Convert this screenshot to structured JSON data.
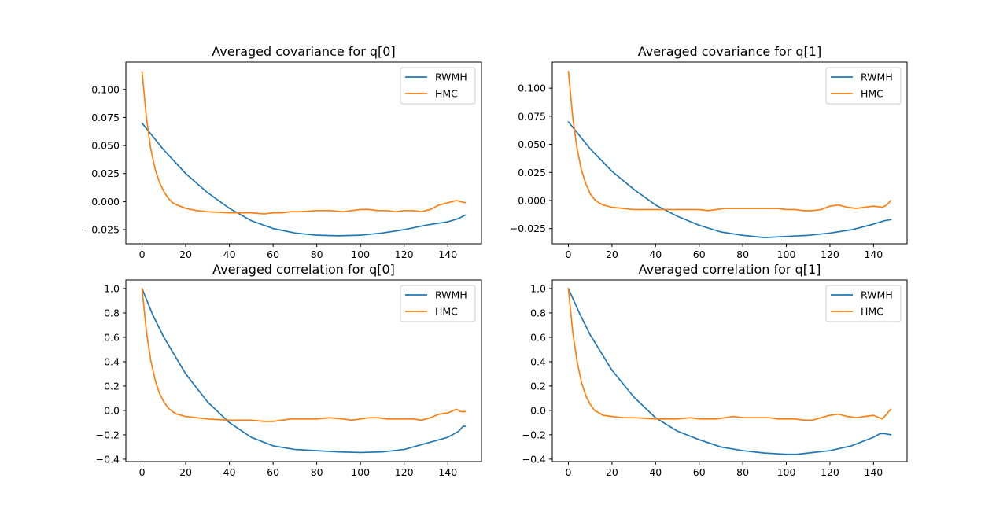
{
  "figure": {
    "background": "#ffffff"
  },
  "chart_data": [
    {
      "type": "line",
      "title": "Averaged covariance for q[0]",
      "xlabel": "",
      "ylabel": "",
      "xlim": [
        -7.4,
        155.4
      ],
      "ylim": [
        -0.0376,
        0.1244
      ],
      "xticks": [
        0,
        20,
        40,
        60,
        80,
        100,
        120,
        140
      ],
      "xtick_labels": [
        "0",
        "20",
        "40",
        "60",
        "80",
        "100",
        "120",
        "140"
      ],
      "yticks": [
        -0.025,
        0.0,
        0.025,
        0.05,
        0.075,
        0.1
      ],
      "ytick_labels": [
        "−0.025",
        "0.000",
        "0.025",
        "0.050",
        "0.075",
        "0.100"
      ],
      "grid": false,
      "legend": {
        "position": "top-right",
        "entries": [
          "RWMH",
          "HMC"
        ]
      },
      "series": [
        {
          "name": "RWMH",
          "color": "#1f77b4",
          "x": [
            0,
            10,
            20,
            30,
            40,
            50,
            60,
            70,
            80,
            90,
            100,
            110,
            120,
            130,
            140,
            145,
            148
          ],
          "y": [
            0.07,
            0.046,
            0.025,
            0.008,
            -0.006,
            -0.017,
            -0.024,
            -0.028,
            -0.03,
            -0.0305,
            -0.03,
            -0.028,
            -0.025,
            -0.021,
            -0.018,
            -0.015,
            -0.012
          ]
        },
        {
          "name": "HMC",
          "color": "#ff7f0e",
          "x": [
            0,
            2,
            4,
            6,
            8,
            10,
            12,
            14,
            16,
            20,
            25,
            30,
            40,
            50,
            56,
            60,
            64,
            68,
            72,
            80,
            86,
            92,
            96,
            100,
            104,
            108,
            112,
            116,
            120,
            124,
            128,
            132,
            136,
            140,
            144,
            146,
            148
          ],
          "y": [
            0.116,
            0.075,
            0.047,
            0.029,
            0.017,
            0.009,
            0.003,
            -0.001,
            -0.003,
            -0.006,
            -0.008,
            -0.009,
            -0.01,
            -0.01,
            -0.011,
            -0.01,
            -0.01,
            -0.009,
            -0.009,
            -0.008,
            -0.008,
            -0.009,
            -0.008,
            -0.007,
            -0.007,
            -0.008,
            -0.008,
            -0.009,
            -0.008,
            -0.008,
            -0.009,
            -0.007,
            -0.003,
            -0.001,
            0.001,
            0.0,
            -0.001
          ]
        }
      ]
    },
    {
      "type": "line",
      "title": "Averaged covariance for q[1]",
      "xlabel": "",
      "ylabel": "",
      "xlim": [
        -7.4,
        155.4
      ],
      "ylim": [
        -0.0385,
        0.1232
      ],
      "xticks": [
        0,
        20,
        40,
        60,
        80,
        100,
        120,
        140
      ],
      "xtick_labels": [
        "0",
        "20",
        "40",
        "60",
        "80",
        "100",
        "120",
        "140"
      ],
      "yticks": [
        -0.025,
        0.0,
        0.025,
        0.05,
        0.075,
        0.1
      ],
      "ytick_labels": [
        "−0.025",
        "0.000",
        "0.025",
        "0.050",
        "0.075",
        "0.100"
      ],
      "grid": false,
      "legend": {
        "position": "top-right",
        "entries": [
          "RWMH",
          "HMC"
        ]
      },
      "series": [
        {
          "name": "RWMH",
          "color": "#1f77b4",
          "x": [
            0,
            10,
            20,
            30,
            40,
            50,
            60,
            70,
            80,
            90,
            100,
            110,
            120,
            130,
            140,
            145,
            148
          ],
          "y": [
            0.07,
            0.046,
            0.026,
            0.01,
            -0.004,
            -0.014,
            -0.022,
            -0.028,
            -0.031,
            -0.033,
            -0.032,
            -0.031,
            -0.029,
            -0.026,
            -0.021,
            -0.018,
            -0.017
          ]
        },
        {
          "name": "HMC",
          "color": "#ff7f0e",
          "x": [
            0,
            2,
            4,
            6,
            8,
            10,
            12,
            14,
            16,
            20,
            25,
            30,
            40,
            50,
            56,
            60,
            64,
            68,
            72,
            76,
            80,
            86,
            92,
            96,
            100,
            104,
            108,
            112,
            116,
            120,
            124,
            128,
            132,
            136,
            140,
            144,
            146,
            148
          ],
          "y": [
            0.115,
            0.074,
            0.046,
            0.027,
            0.015,
            0.006,
            0.001,
            -0.002,
            -0.004,
            -0.006,
            -0.007,
            -0.008,
            -0.008,
            -0.008,
            -0.008,
            -0.008,
            -0.009,
            -0.008,
            -0.007,
            -0.007,
            -0.007,
            -0.007,
            -0.007,
            -0.007,
            -0.008,
            -0.008,
            -0.009,
            -0.009,
            -0.008,
            -0.005,
            -0.004,
            -0.006,
            -0.007,
            -0.006,
            -0.005,
            -0.006,
            -0.004,
            0.0
          ]
        }
      ]
    },
    {
      "type": "line",
      "title": "Averaged correlation for q[0]",
      "xlabel": "",
      "ylabel": "",
      "xlim": [
        -7.4,
        155.4
      ],
      "ylim": [
        -0.4196,
        1.0705
      ],
      "xticks": [
        0,
        20,
        40,
        60,
        80,
        100,
        120,
        140
      ],
      "xtick_labels": [
        "0",
        "20",
        "40",
        "60",
        "80",
        "100",
        "120",
        "140"
      ],
      "yticks": [
        -0.4,
        -0.2,
        0.0,
        0.2,
        0.4,
        0.6,
        0.8,
        1.0
      ],
      "ytick_labels": [
        "−0.4",
        "−0.2",
        "0.0",
        "0.2",
        "0.4",
        "0.6",
        "0.8",
        "1.0"
      ],
      "grid": false,
      "legend": {
        "position": "top-right",
        "entries": [
          "RWMH",
          "HMC"
        ]
      },
      "series": [
        {
          "name": "RWMH",
          "color": "#1f77b4",
          "x": [
            0,
            5,
            10,
            20,
            30,
            40,
            50,
            60,
            70,
            80,
            90,
            100,
            110,
            120,
            130,
            140,
            145,
            147,
            148
          ],
          "y": [
            1.0,
            0.78,
            0.6,
            0.3,
            0.07,
            -0.1,
            -0.22,
            -0.29,
            -0.32,
            -0.33,
            -0.34,
            -0.345,
            -0.34,
            -0.32,
            -0.27,
            -0.22,
            -0.17,
            -0.13,
            -0.13
          ]
        },
        {
          "name": "HMC",
          "color": "#ff7f0e",
          "x": [
            0,
            2,
            4,
            6,
            8,
            10,
            12,
            14,
            16,
            20,
            25,
            30,
            40,
            50,
            56,
            60,
            64,
            68,
            72,
            80,
            86,
            92,
            96,
            100,
            104,
            108,
            112,
            116,
            120,
            124,
            128,
            132,
            136,
            140,
            144,
            146,
            148
          ],
          "y": [
            1.0,
            0.65,
            0.41,
            0.25,
            0.14,
            0.07,
            0.02,
            -0.01,
            -0.03,
            -0.05,
            -0.06,
            -0.07,
            -0.08,
            -0.08,
            -0.09,
            -0.09,
            -0.08,
            -0.07,
            -0.07,
            -0.07,
            -0.06,
            -0.07,
            -0.08,
            -0.07,
            -0.06,
            -0.06,
            -0.07,
            -0.07,
            -0.07,
            -0.07,
            -0.08,
            -0.06,
            -0.03,
            -0.02,
            0.01,
            -0.01,
            -0.01
          ]
        }
      ]
    },
    {
      "type": "line",
      "title": "Averaged correlation for q[1]",
      "xlabel": "",
      "ylabel": "",
      "xlim": [
        -7.4,
        155.4
      ],
      "ylim": [
        -0.4201,
        1.0706
      ],
      "xticks": [
        0,
        20,
        40,
        60,
        80,
        100,
        120,
        140
      ],
      "xtick_labels": [
        "0",
        "20",
        "40",
        "60",
        "80",
        "100",
        "120",
        "140"
      ],
      "yticks": [
        -0.4,
        -0.2,
        0.0,
        0.2,
        0.4,
        0.6,
        0.8,
        1.0
      ],
      "ytick_labels": [
        "−0.4",
        "−0.2",
        "0.0",
        "0.2",
        "0.4",
        "0.6",
        "0.8",
        "1.0"
      ],
      "grid": false,
      "legend": {
        "position": "top-right",
        "entries": [
          "RWMH",
          "HMC"
        ]
      },
      "series": [
        {
          "name": "RWMH",
          "color": "#1f77b4",
          "x": [
            0,
            5,
            10,
            20,
            30,
            40,
            50,
            60,
            70,
            80,
            90,
            100,
            105,
            110,
            120,
            130,
            140,
            143,
            145,
            148
          ],
          "y": [
            1.0,
            0.8,
            0.62,
            0.33,
            0.11,
            -0.06,
            -0.17,
            -0.24,
            -0.3,
            -0.33,
            -0.35,
            -0.36,
            -0.36,
            -0.35,
            -0.33,
            -0.29,
            -0.22,
            -0.19,
            -0.19,
            -0.2
          ]
        },
        {
          "name": "HMC",
          "color": "#ff7f0e",
          "x": [
            0,
            2,
            4,
            6,
            8,
            10,
            12,
            14,
            16,
            20,
            25,
            30,
            40,
            50,
            56,
            60,
            64,
            68,
            72,
            76,
            80,
            86,
            92,
            96,
            100,
            104,
            108,
            112,
            116,
            120,
            124,
            128,
            132,
            136,
            140,
            144,
            146,
            148
          ],
          "y": [
            1.0,
            0.64,
            0.4,
            0.23,
            0.12,
            0.05,
            0.0,
            -0.02,
            -0.04,
            -0.05,
            -0.06,
            -0.06,
            -0.07,
            -0.07,
            -0.06,
            -0.07,
            -0.07,
            -0.07,
            -0.06,
            -0.05,
            -0.06,
            -0.06,
            -0.06,
            -0.07,
            -0.07,
            -0.07,
            -0.08,
            -0.08,
            -0.06,
            -0.04,
            -0.03,
            -0.05,
            -0.06,
            -0.05,
            -0.04,
            -0.07,
            -0.03,
            0.01
          ]
        }
      ]
    }
  ]
}
